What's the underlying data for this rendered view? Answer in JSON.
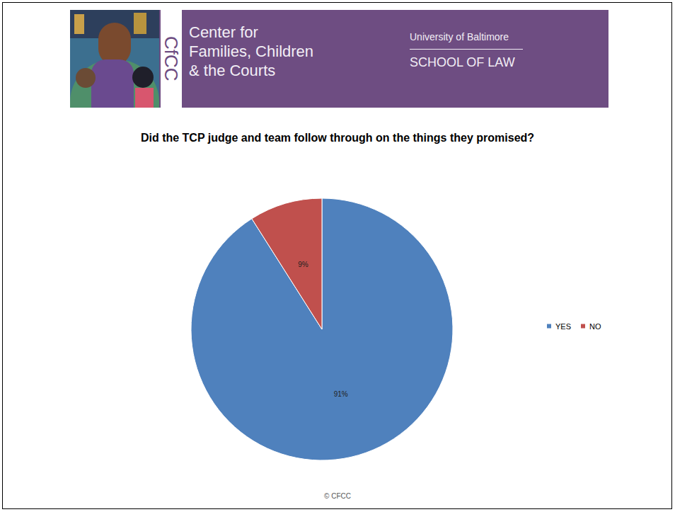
{
  "header": {
    "logo": "CfCC",
    "name_lines": [
      "Center for",
      "Families, Children",
      "& the Courts"
    ],
    "university": "University of Baltimore",
    "school": "SCHOOL OF LAW"
  },
  "footer": "© CFCC",
  "chart_data": {
    "type": "pie",
    "title": "Did the TCP judge and team follow through on the things they promised?",
    "categories": [
      "YES",
      "NO"
    ],
    "values": [
      91,
      9
    ],
    "value_labels": [
      "91%",
      "9%"
    ],
    "colors": [
      "#4f81bd",
      "#c0504d"
    ],
    "data_labels": true,
    "legend": "right"
  }
}
